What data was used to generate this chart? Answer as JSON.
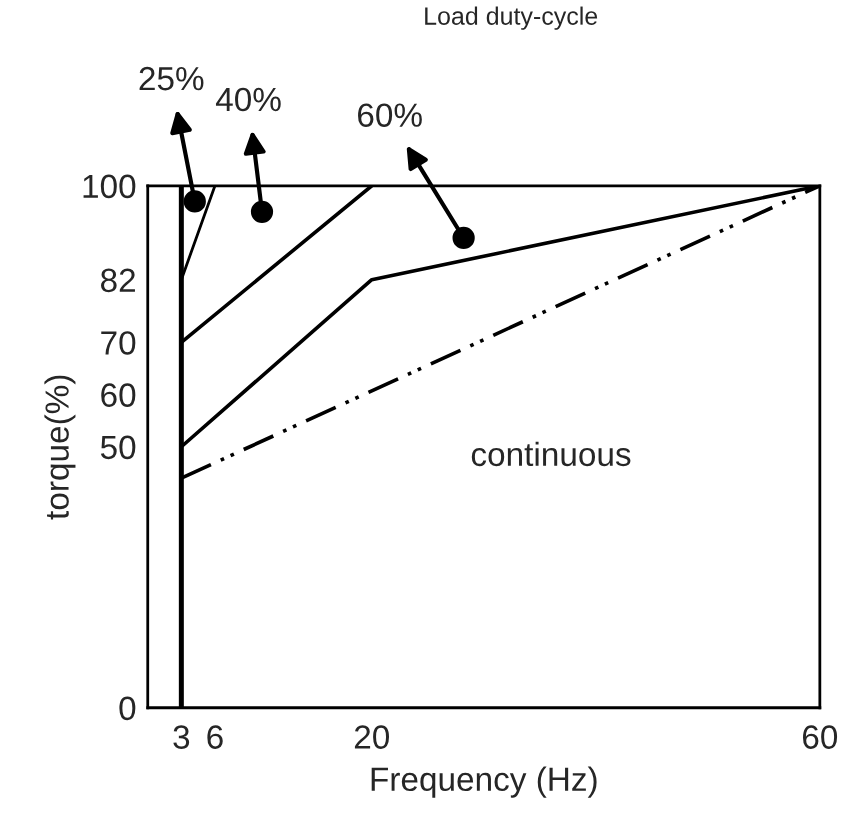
{
  "chart_data": {
    "type": "line",
    "title": "Load duty-cycle",
    "xlabel": "Frequency (Hz)",
    "ylabel": "torque(%)",
    "xlim": [
      0,
      60
    ],
    "xticks": [
      3,
      6,
      20,
      60
    ],
    "ylim": [
      0,
      100
    ],
    "yticks": [
      0,
      50,
      60,
      70,
      82,
      100
    ],
    "grid": false,
    "legend": false,
    "series": [
      {
        "color": "#000000",
        "x": [
          3,
          6
        ],
        "values": [
          82,
          100
        ]
      },
      {
        "color": "#000000",
        "x": [
          3,
          20
        ],
        "values": [
          70,
          100
        ]
      },
      {
        "color": "#000000",
        "x": [
          3,
          20,
          60
        ],
        "values": [
          50,
          82,
          100
        ]
      },
      {
        "color": "#000000",
        "x": [
          3,
          60
        ],
        "values": [
          44,
          100
        ],
        "line_style": "dashdot"
      }
    ],
    "ref_lines": [
      {
        "axis": "x",
        "value": 3,
        "color": "#000000"
      }
    ],
    "annotations": [
      "25%",
      "40%",
      "60%",
      "continuous"
    ]
  }
}
